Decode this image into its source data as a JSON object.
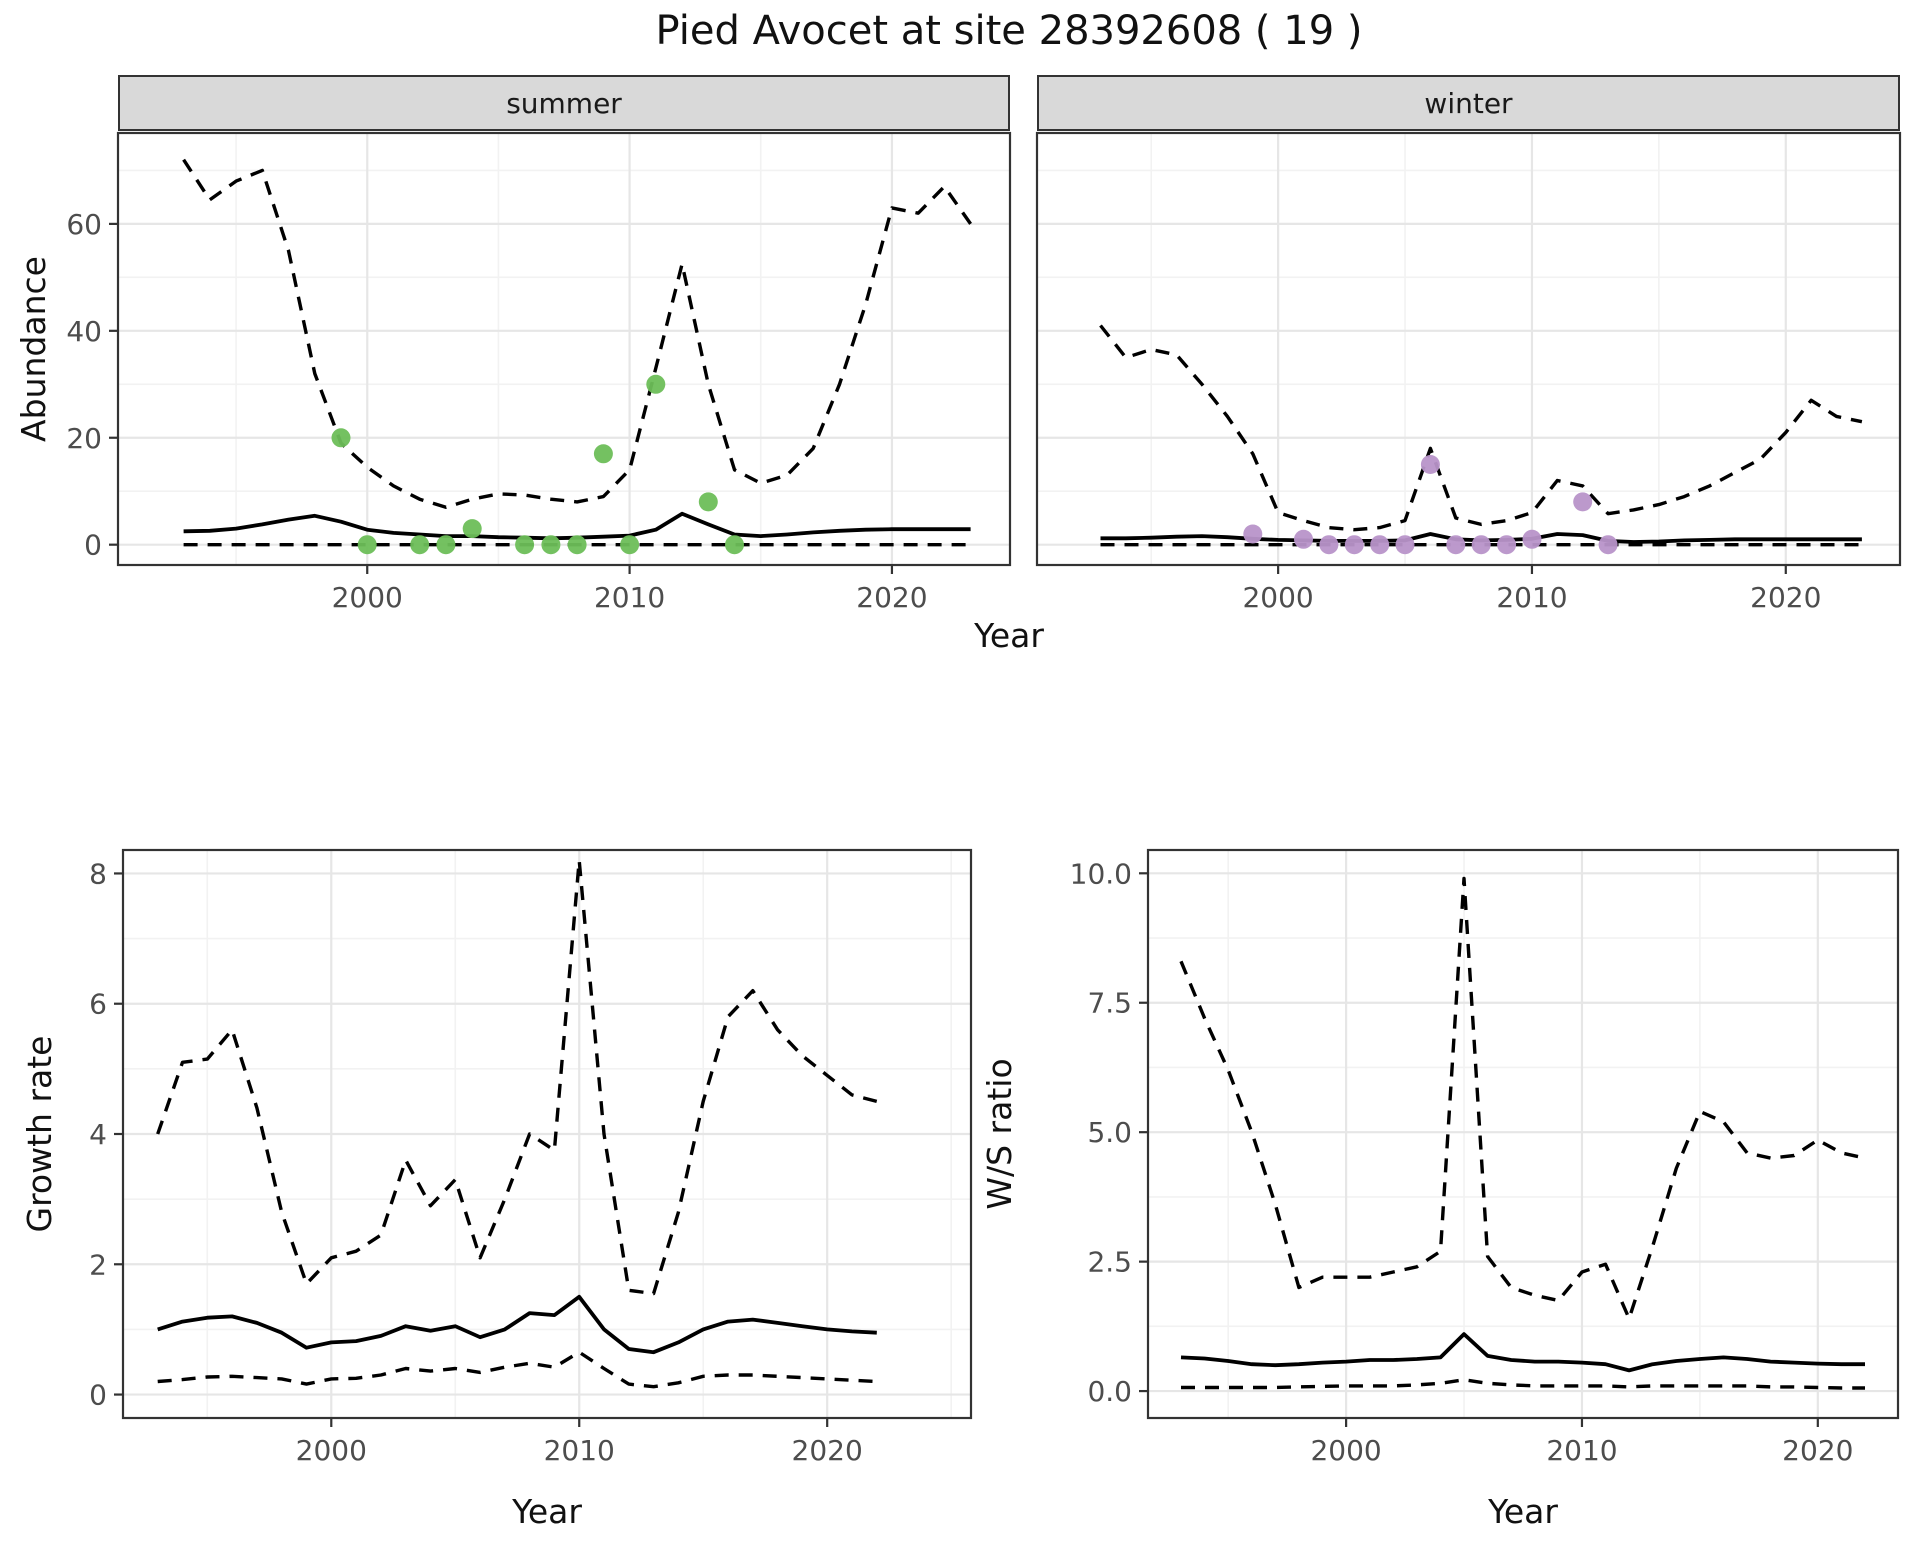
{
  "title": "Pied Avocet at site 28392608 ( 19 )",
  "colors": {
    "line": "#000000",
    "summer_points": "#6dbe59",
    "winter_points": "#b893c9",
    "grid_major": "#e6e6e6",
    "grid_minor": "#f2f2f2",
    "panel_border": "#333333",
    "tick_mark": "#333333",
    "tick_text": "#4d4d4d",
    "strip_bg": "#d9d9d9"
  },
  "chart_data": [
    {
      "id": "abundance_summer",
      "type": "line",
      "facet": "summer",
      "xlabel": "Year",
      "ylabel": "Abundance",
      "xlim": [
        1990.5,
        2024.5
      ],
      "ylim": [
        -3.8,
        77
      ],
      "xticks": [
        2000,
        2010,
        2020
      ],
      "xtick_labels": [
        "2000",
        "2010",
        "2020"
      ],
      "xminor": [
        1995,
        2005,
        2015
      ],
      "yticks": [
        0,
        20,
        40,
        60
      ],
      "ytick_labels": [
        "0",
        "20",
        "40",
        "60"
      ],
      "yminor": [
        10,
        30,
        50,
        70
      ],
      "series": [
        {
          "name": "upper_95ci",
          "style": "dashed",
          "x": [
            1993,
            1994,
            1995,
            1996,
            1997,
            1998,
            1999,
            2000,
            2001,
            2002,
            2003,
            2004,
            2005,
            2006,
            2007,
            2008,
            2009,
            2010,
            2011,
            2012,
            2013,
            2014,
            2015,
            2016,
            2017,
            2018,
            2019,
            2020,
            2021,
            2022,
            2023
          ],
          "y": [
            72,
            64.5,
            68,
            70,
            55,
            32,
            19,
            14.5,
            11,
            8.5,
            7,
            8.5,
            9.5,
            9.3,
            8.5,
            8,
            9,
            14,
            33,
            52.5,
            30,
            14,
            11.5,
            13,
            18,
            30,
            45,
            63,
            62,
            67,
            60
          ]
        },
        {
          "name": "estimate",
          "style": "solid",
          "x": [
            1993,
            1994,
            1995,
            1996,
            1997,
            1998,
            1999,
            2000,
            2001,
            2002,
            2003,
            2004,
            2005,
            2006,
            2007,
            2008,
            2009,
            2010,
            2011,
            2012,
            2013,
            2014,
            2015,
            2016,
            2017,
            2018,
            2019,
            2020,
            2021,
            2022,
            2023
          ],
          "y": [
            2.5,
            2.6,
            3.0,
            3.8,
            4.7,
            5.4,
            4.3,
            2.8,
            2.2,
            1.9,
            1.6,
            1.6,
            1.4,
            1.3,
            1.2,
            1.3,
            1.5,
            1.7,
            2.8,
            5.8,
            3.8,
            1.9,
            1.6,
            1.9,
            2.3,
            2.6,
            2.8,
            2.9,
            2.9,
            2.9,
            2.9
          ]
        },
        {
          "name": "lower_95ci",
          "style": "dashed",
          "x": [
            1993,
            1994,
            1995,
            1996,
            1997,
            1998,
            1999,
            2000,
            2001,
            2002,
            2003,
            2004,
            2005,
            2006,
            2007,
            2008,
            2009,
            2010,
            2011,
            2012,
            2013,
            2014,
            2015,
            2016,
            2017,
            2018,
            2019,
            2020,
            2021,
            2022,
            2023
          ],
          "y": [
            0,
            0,
            0,
            0,
            0,
            0,
            0,
            0,
            0,
            0,
            0,
            0,
            0,
            0,
            0,
            0,
            0,
            0,
            0,
            0,
            0,
            0,
            0,
            0,
            0,
            0,
            0,
            0,
            0,
            0,
            0
          ]
        }
      ],
      "points": {
        "name": "observed_counts",
        "color_key": "summer_points",
        "x": [
          1999,
          2000,
          2002,
          2003,
          2004,
          2006,
          2007,
          2008,
          2009,
          2010,
          2011,
          2013,
          2014
        ],
        "y": [
          20,
          0,
          0,
          0,
          3,
          0,
          0,
          0,
          17,
          0,
          30,
          8,
          0
        ]
      }
    },
    {
      "id": "abundance_winter",
      "type": "line",
      "facet": "winter",
      "xlabel": "Year",
      "ylabel": "Abundance",
      "xlim": [
        1990.5,
        2024.5
      ],
      "ylim": [
        -3.8,
        77
      ],
      "xticks": [
        2000,
        2010,
        2020
      ],
      "xtick_labels": [
        "2000",
        "2010",
        "2020"
      ],
      "xminor": [
        1995,
        2005,
        2015
      ],
      "yticks": [
        0,
        20,
        40,
        60
      ],
      "ytick_labels": [
        "0",
        "20",
        "40",
        "60"
      ],
      "yminor": [
        10,
        30,
        50,
        70
      ],
      "series": [
        {
          "name": "upper_95ci",
          "style": "dashed",
          "x": [
            1993,
            1994,
            1995,
            1996,
            1997,
            1998,
            1999,
            2000,
            2001,
            2002,
            2003,
            2004,
            2005,
            2006,
            2007,
            2008,
            2009,
            2010,
            2011,
            2012,
            2013,
            2014,
            2015,
            2016,
            2017,
            2018,
            2019,
            2020,
            2021,
            2022,
            2023
          ],
          "y": [
            41,
            35,
            36.5,
            35.5,
            30,
            24,
            17,
            6,
            4.5,
            3.2,
            2.8,
            3.2,
            4.5,
            18,
            5,
            3.8,
            4.5,
            6,
            12,
            11,
            5.8,
            6.5,
            7.5,
            9,
            11,
            13.5,
            16,
            21,
            27,
            24,
            23
          ]
        },
        {
          "name": "estimate",
          "style": "solid",
          "x": [
            1993,
            1994,
            1995,
            1996,
            1997,
            1998,
            1999,
            2000,
            2001,
            2002,
            2003,
            2004,
            2005,
            2006,
            2007,
            2008,
            2009,
            2010,
            2011,
            2012,
            2013,
            2014,
            2015,
            2016,
            2017,
            2018,
            2019,
            2020,
            2021,
            2022,
            2023
          ],
          "y": [
            1.2,
            1.2,
            1.3,
            1.5,
            1.6,
            1.4,
            1.1,
            0.9,
            0.8,
            0.7,
            0.7,
            0.7,
            0.8,
            2.0,
            1.0,
            0.8,
            0.9,
            1.1,
            2.0,
            1.8,
            0.7,
            0.5,
            0.6,
            0.8,
            0.9,
            1.0,
            1.0,
            1.0,
            1.0,
            1.0,
            1.0
          ]
        },
        {
          "name": "lower_95ci",
          "style": "dashed",
          "x": [
            1993,
            1994,
            1995,
            1996,
            1997,
            1998,
            1999,
            2000,
            2001,
            2002,
            2003,
            2004,
            2005,
            2006,
            2007,
            2008,
            2009,
            2010,
            2011,
            2012,
            2013,
            2014,
            2015,
            2016,
            2017,
            2018,
            2019,
            2020,
            2021,
            2022,
            2023
          ],
          "y": [
            0,
            0,
            0,
            0,
            0,
            0,
            0,
            0,
            0,
            0,
            0,
            0,
            0,
            0,
            0,
            0,
            0,
            0,
            0,
            0,
            0,
            0,
            0,
            0,
            0,
            0,
            0,
            0,
            0,
            0,
            0
          ]
        }
      ],
      "points": {
        "name": "observed_counts",
        "color_key": "winter_points",
        "x": [
          1999,
          2001,
          2002,
          2003,
          2004,
          2005,
          2006,
          2007,
          2008,
          2009,
          2010,
          2012,
          2013
        ],
        "y": [
          2,
          1,
          0,
          0,
          0,
          0,
          15,
          0,
          0,
          0,
          1,
          8,
          0
        ]
      }
    },
    {
      "id": "growth_rate",
      "type": "line",
      "facet": null,
      "xlabel": "Year",
      "ylabel": "Growth rate",
      "xlim": [
        1991.6,
        2025.8
      ],
      "ylim": [
        -0.36,
        8.36
      ],
      "xticks": [
        2000,
        2010,
        2020
      ],
      "xtick_labels": [
        "2000",
        "2010",
        "2020"
      ],
      "xminor": [
        1995,
        2005,
        2015,
        2025
      ],
      "yticks": [
        0,
        2,
        4,
        6,
        8
      ],
      "ytick_labels": [
        "0",
        "2",
        "4",
        "6",
        "8"
      ],
      "yminor": [
        1,
        3,
        5,
        7
      ],
      "series": [
        {
          "name": "upper_95ci",
          "style": "dashed",
          "x": [
            1993,
            1994,
            1995,
            1996,
            1997,
            1998,
            1999,
            2000,
            2001,
            2002,
            2003,
            2004,
            2005,
            2006,
            2007,
            2008,
            2009,
            2010,
            2011,
            2012,
            2013,
            2014,
            2015,
            2016,
            2017,
            2018,
            2019,
            2020,
            2021,
            2022
          ],
          "y": [
            4.0,
            5.1,
            5.15,
            5.6,
            4.4,
            2.8,
            1.7,
            2.1,
            2.2,
            2.45,
            3.6,
            2.9,
            3.3,
            2.1,
            3.0,
            4.0,
            3.75,
            8.2,
            4.0,
            1.6,
            1.55,
            2.8,
            4.5,
            5.8,
            6.2,
            5.6,
            5.2,
            4.9,
            4.6,
            4.5
          ]
        },
        {
          "name": "estimate",
          "style": "solid",
          "x": [
            1993,
            1994,
            1995,
            1996,
            1997,
            1998,
            1999,
            2000,
            2001,
            2002,
            2003,
            2004,
            2005,
            2006,
            2007,
            2008,
            2009,
            2010,
            2011,
            2012,
            2013,
            2014,
            2015,
            2016,
            2017,
            2018,
            2019,
            2020,
            2021,
            2022
          ],
          "y": [
            1.0,
            1.12,
            1.18,
            1.2,
            1.1,
            0.95,
            0.72,
            0.8,
            0.82,
            0.9,
            1.05,
            0.98,
            1.05,
            0.88,
            1.0,
            1.25,
            1.22,
            1.5,
            1.0,
            0.7,
            0.65,
            0.8,
            1.0,
            1.12,
            1.15,
            1.1,
            1.05,
            1.0,
            0.97,
            0.95
          ]
        },
        {
          "name": "lower_95ci",
          "style": "dashed",
          "x": [
            1993,
            1994,
            1995,
            1996,
            1997,
            1998,
            1999,
            2000,
            2001,
            2002,
            2003,
            2004,
            2005,
            2006,
            2007,
            2008,
            2009,
            2010,
            2011,
            2012,
            2013,
            2014,
            2015,
            2016,
            2017,
            2018,
            2019,
            2020,
            2021,
            2022
          ],
          "y": [
            0.2,
            0.23,
            0.27,
            0.28,
            0.26,
            0.24,
            0.16,
            0.24,
            0.25,
            0.3,
            0.4,
            0.36,
            0.4,
            0.34,
            0.42,
            0.48,
            0.42,
            0.65,
            0.4,
            0.16,
            0.12,
            0.18,
            0.28,
            0.3,
            0.3,
            0.28,
            0.26,
            0.24,
            0.22,
            0.2
          ]
        }
      ],
      "points": null
    },
    {
      "id": "ws_ratio",
      "type": "line",
      "facet": null,
      "xlabel": "Year",
      "ylabel": "W/S ratio",
      "xlim": [
        1991.6,
        2023.4
      ],
      "ylim": [
        -0.52,
        10.45
      ],
      "xticks": [
        2000,
        2010,
        2020
      ],
      "xtick_labels": [
        "2000",
        "2010",
        "2020"
      ],
      "xminor": [
        1995,
        2005,
        2015
      ],
      "yticks": [
        0,
        2.5,
        5,
        7.5,
        10
      ],
      "ytick_labels": [
        "0.0",
        "2.5",
        "5.0",
        "7.5",
        "10.0"
      ],
      "yminor": [
        1.25,
        3.75,
        6.25,
        8.75
      ],
      "series": [
        {
          "name": "upper_95ci",
          "style": "dashed",
          "x": [
            1993,
            1994,
            1995,
            1996,
            1997,
            1998,
            1999,
            2000,
            2001,
            2002,
            2003,
            2004,
            2005,
            2006,
            2007,
            2008,
            2009,
            2010,
            2011,
            2012,
            2013,
            2014,
            2015,
            2016,
            2017,
            2018,
            2019,
            2020,
            2021,
            2022
          ],
          "y": [
            8.3,
            7.2,
            6.2,
            5.0,
            3.6,
            2.0,
            2.2,
            2.2,
            2.2,
            2.3,
            2.4,
            2.7,
            9.9,
            2.6,
            2.0,
            1.85,
            1.75,
            2.3,
            2.45,
            1.4,
            2.8,
            4.3,
            5.4,
            5.2,
            4.6,
            4.5,
            4.55,
            4.85,
            4.6,
            4.5
          ]
        },
        {
          "name": "estimate",
          "style": "solid",
          "x": [
            1993,
            1994,
            1995,
            1996,
            1997,
            1998,
            1999,
            2000,
            2001,
            2002,
            2003,
            2004,
            2005,
            2006,
            2007,
            2008,
            2009,
            2010,
            2011,
            2012,
            2013,
            2014,
            2015,
            2016,
            2017,
            2018,
            2019,
            2020,
            2021,
            2022
          ],
          "y": [
            0.65,
            0.63,
            0.58,
            0.52,
            0.5,
            0.52,
            0.55,
            0.57,
            0.6,
            0.6,
            0.62,
            0.65,
            1.1,
            0.68,
            0.6,
            0.57,
            0.57,
            0.55,
            0.52,
            0.4,
            0.52,
            0.58,
            0.62,
            0.65,
            0.62,
            0.57,
            0.55,
            0.53,
            0.52,
            0.52
          ]
        },
        {
          "name": "lower_95ci",
          "style": "dashed",
          "x": [
            1993,
            1994,
            1995,
            1996,
            1997,
            1998,
            1999,
            2000,
            2001,
            2002,
            2003,
            2004,
            2005,
            2006,
            2007,
            2008,
            2009,
            2010,
            2011,
            2012,
            2013,
            2014,
            2015,
            2016,
            2017,
            2018,
            2019,
            2020,
            2021,
            2022
          ],
          "y": [
            0.07,
            0.07,
            0.07,
            0.07,
            0.07,
            0.08,
            0.09,
            0.1,
            0.1,
            0.1,
            0.12,
            0.15,
            0.22,
            0.15,
            0.12,
            0.1,
            0.1,
            0.1,
            0.1,
            0.08,
            0.1,
            0.1,
            0.1,
            0.1,
            0.1,
            0.08,
            0.08,
            0.07,
            0.06,
            0.06
          ]
        }
      ],
      "points": null
    }
  ]
}
